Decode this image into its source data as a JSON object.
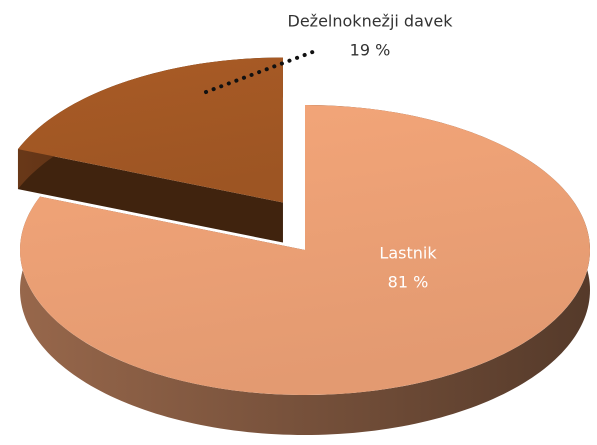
{
  "chart_data": {
    "type": "pie",
    "categories": [
      "Lastnik",
      "Deželnoknežji davek"
    ],
    "values": [
      81,
      19
    ],
    "value_labels": [
      "81 %",
      "19 %"
    ],
    "colors": [
      "#f4a679",
      "#a95b26"
    ]
  }
}
